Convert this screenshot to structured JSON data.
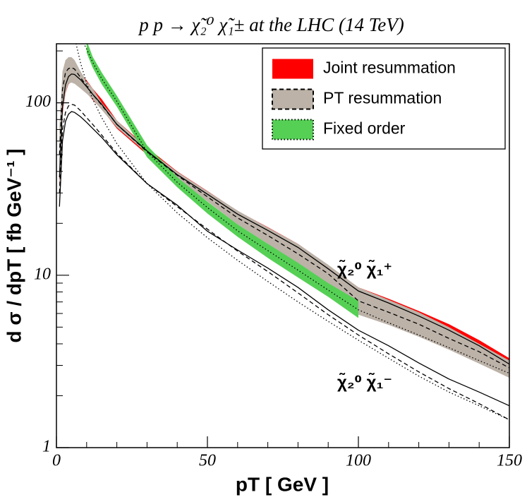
{
  "chart_data": {
    "type": "band",
    "title": "p p → χ̃₂⁰ χ̃₁± at the LHC (14 TeV)",
    "xlabel": "pT [ GeV ]",
    "ylabel": "d σ / dpT [ fb GeV⁻¹ ]",
    "xlim": [
      0,
      150
    ],
    "ylim": [
      1,
      220
    ],
    "xticks": [
      0,
      50,
      100,
      150
    ],
    "yticks": [
      1,
      10,
      100
    ],
    "xminorticks": [
      10,
      20,
      30,
      40,
      60,
      70,
      80,
      90,
      110,
      120,
      130,
      140
    ],
    "yminorticks": [
      2,
      3,
      4,
      5,
      6,
      7,
      8,
      9,
      20,
      30,
      40,
      50,
      60,
      70,
      80,
      90,
      200
    ],
    "log_y": true,
    "legend": "top-right",
    "x": [
      1,
      2,
      3,
      4,
      5,
      6,
      8,
      10,
      12,
      15,
      20,
      30,
      40,
      50,
      60,
      70,
      80,
      90,
      100,
      110,
      120,
      130,
      140,
      150
    ],
    "series": [
      {
        "name": "Joint resummation",
        "color": "#ff0000",
        "border": "none",
        "lower": [
          33,
          85,
          114,
          128,
          133,
          132,
          124,
          114,
          104,
          92,
          71,
          50,
          36.5,
          28.2,
          21.6,
          17.4,
          13.8,
          10.4,
          7.7,
          6.5,
          5.4,
          4.4,
          3.6,
          2.8
        ],
        "upper": [
          41,
          104,
          140,
          157,
          162,
          160,
          149,
          135,
          121,
          105,
          79,
          55,
          40,
          30.8,
          23.6,
          19,
          15.2,
          11.4,
          8.5,
          7.3,
          6.2,
          5.2,
          4.2,
          3.3
        ]
      },
      {
        "name": "PT resummation",
        "color": "#bcb2a8",
        "border": "dashed",
        "lower": [
          31,
          87,
          115,
          129,
          131,
          129,
          121,
          113,
          105,
          91,
          72,
          51,
          36.6,
          26.8,
          19.7,
          15.2,
          11.5,
          8.2,
          5.9,
          5.15,
          4.4,
          3.7,
          3.07,
          2.54
        ],
        "upper": [
          72,
          152,
          177,
          184,
          184,
          177,
          152,
          133,
          121,
          100,
          79,
          54,
          39.8,
          30.7,
          23.7,
          18.9,
          15.2,
          11.5,
          8.5,
          7.2,
          6.1,
          5.0,
          4.0,
          3.2
        ]
      },
      {
        "name": "Fixed order",
        "color": "#55d055",
        "border": "dotted",
        "lower": [
          null,
          null,
          null,
          null,
          null,
          null,
          null,
          195,
          160,
          128,
          95,
          48.4,
          32.4,
          22.8,
          16.7,
          12.6,
          9.7,
          7.5,
          5.65,
          null,
          null,
          null,
          null,
          null
        ],
        "upper": [
          null,
          null,
          null,
          null,
          null,
          null,
          null,
          230,
          185,
          150,
          110,
          56.7,
          37,
          26.7,
          19.7,
          15.2,
          11.8,
          9.0,
          7.1,
          null,
          null,
          null,
          null,
          null
        ]
      }
    ],
    "lines": [
      {
        "style": "solid",
        "color": "#000000",
        "values": [
          37,
          95,
          127,
          142,
          147,
          146,
          136,
          124,
          112,
          98,
          75,
          52.6,
          38.3,
          29.5,
          22.6,
          18.2,
          14.5,
          10.9,
          8.1,
          6.9,
          5.8,
          4.8,
          3.9,
          3.05
        ]
      },
      {
        "style": "dashed",
        "color": "#000000",
        "values": [
          50,
          120,
          150,
          158,
          160,
          157,
          140,
          125,
          112,
          97,
          75,
          52,
          38,
          28.5,
          21.5,
          17,
          13.3,
          10.2,
          7.1,
          6.1,
          5.2,
          4.3,
          3.6,
          2.9
        ]
      },
      {
        "style": "dotted",
        "color": "#000000",
        "values": [
          null,
          null,
          null,
          null,
          null,
          320,
          240,
          205,
          172,
          138,
          102,
          52,
          34.6,
          24.7,
          18.1,
          13.9,
          10.7,
          8.2,
          6.3,
          5.3,
          4.5,
          3.8,
          3.2,
          2.7
        ]
      },
      {
        "style": "solid",
        "color": "#000000",
        "values": [
          25,
          60,
          78,
          86,
          89,
          88,
          83,
          77,
          71,
          63,
          50,
          34,
          25.5,
          18,
          14,
          11,
          8.5,
          6.3,
          4.8,
          3.9,
          3.1,
          2.5,
          2.1,
          1.75
        ]
      },
      {
        "style": "dashed",
        "color": "#000000",
        "values": [
          30,
          70,
          88,
          96,
          98,
          97,
          90,
          82,
          75,
          65,
          51,
          34,
          25,
          18.5,
          13.8,
          10.5,
          7.9,
          5.9,
          4.5,
          3.5,
          2.75,
          2.2,
          1.8,
          1.45
        ]
      },
      {
        "style": "dotted",
        "color": "#000000",
        "values": [
          null,
          null,
          null,
          null,
          null,
          240,
          170,
          130,
          105,
          82,
          58,
          34,
          23,
          16.5,
          12.2,
          9.2,
          7.0,
          5.4,
          4.2,
          3.3,
          2.6,
          2.1,
          1.75,
          1.45
        ]
      }
    ],
    "annotations": [
      {
        "text": "χ̃₂⁰ χ̃₁⁺"
      },
      {
        "text": "χ̃₂⁰ χ̃₁⁻"
      }
    ]
  }
}
